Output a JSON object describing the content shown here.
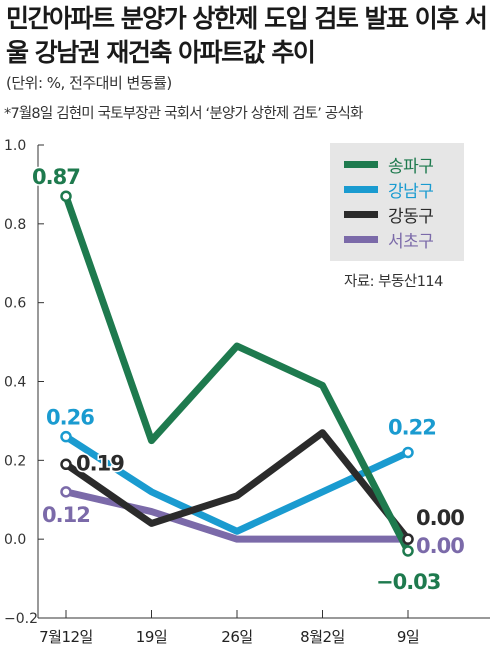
{
  "header": {
    "title": "민간아파트 분양가 상한제 도입 검토 발표 이후 서울 강남권 재건축 아파트값 추이",
    "unit": "(단위: %, 전주대비 변동률)",
    "note": "*7월8일 김현미 국토부장관 국회서 ‘분양가 상한제 검토’ 공식화"
  },
  "source": "자료: 부동산114",
  "chart_data": {
    "type": "line",
    "categories": [
      "7월12일",
      "19일",
      "26일",
      "8월2일",
      "9일"
    ],
    "ylim": [
      -0.2,
      1.0
    ],
    "yticks": [
      "1.0",
      "0.8",
      "0.6",
      "0.4",
      "0.2",
      "0.0",
      "−0.2"
    ],
    "ytick_values": [
      1.0,
      0.8,
      0.6,
      0.4,
      0.2,
      0.0,
      -0.2
    ],
    "grid": false,
    "legend_position": "top-right",
    "series": [
      {
        "name": "송파구",
        "color": "#1e7a4e",
        "values": [
          0.87,
          0.25,
          0.49,
          0.39,
          -0.03
        ],
        "start_label": "0.87",
        "end_label": "−0.03"
      },
      {
        "name": "강남구",
        "color": "#1a9bd0",
        "values": [
          0.26,
          0.12,
          0.02,
          0.12,
          0.22
        ],
        "start_label": "0.26",
        "end_label": "0.22"
      },
      {
        "name": "강동구",
        "color": "#2b2b2b",
        "values": [
          0.19,
          0.04,
          0.11,
          0.27,
          0.0
        ],
        "start_label": "0.19",
        "end_label": "0.00"
      },
      {
        "name": "서초구",
        "color": "#7b6aa9",
        "values": [
          0.12,
          0.07,
          0.0,
          0.0,
          0.0
        ],
        "start_label": "0.12",
        "end_label": "0.00"
      }
    ]
  }
}
